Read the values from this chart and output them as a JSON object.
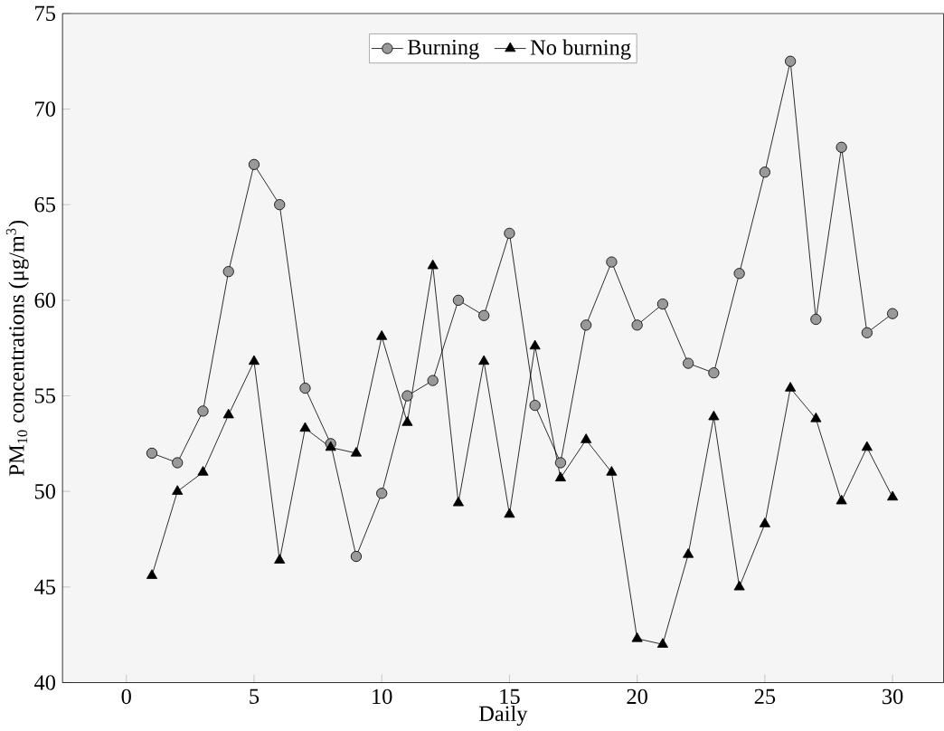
{
  "chart_data": {
    "type": "line",
    "xlabel": "Daily",
    "ylabel": "PM$_{10}$ concentrations (μg/m$^{3}$)",
    "x": [
      1,
      2,
      3,
      4,
      5,
      6,
      7,
      8,
      9,
      10,
      11,
      12,
      13,
      14,
      15,
      16,
      17,
      18,
      19,
      20,
      21,
      22,
      23,
      24,
      25,
      26,
      27,
      28,
      29,
      30
    ],
    "series": [
      {
        "name": "Burning",
        "color": "#000000",
        "marker": "circle",
        "values": [
          52,
          51.5,
          54.2,
          61.5,
          67.1,
          65,
          55.4,
          52.5,
          46.6,
          49.9,
          55,
          55.8,
          60,
          59.2,
          63.5,
          54.5,
          51.5,
          58.7,
          62,
          58.7,
          59.8,
          56.7,
          56.2,
          61.4,
          66.7,
          72.5,
          59,
          68,
          58.3,
          59.3
        ]
      },
      {
        "name": "No burning",
        "color": "#000000",
        "marker": "triangle",
        "values": [
          45.6,
          50,
          51,
          54,
          56.8,
          46.4,
          53.3,
          52.3,
          52,
          58.1,
          53.6,
          61.8,
          49.4,
          56.8,
          48.8,
          57.6,
          50.7,
          52.7,
          51,
          42.3,
          42,
          46.7,
          53.9,
          45,
          48.3,
          55.4,
          53.8,
          49.5,
          52.3,
          49.7
        ]
      }
    ],
    "xlim": [
      -2.5,
      32
    ],
    "ylim": [
      40,
      75
    ],
    "xticks": [
      0,
      5,
      10,
      15,
      20,
      25,
      30
    ],
    "yticks": [
      40,
      45,
      50,
      55,
      60,
      65,
      70,
      75
    ],
    "legend": "top",
    "grid": false,
    "line_style": "solid"
  }
}
